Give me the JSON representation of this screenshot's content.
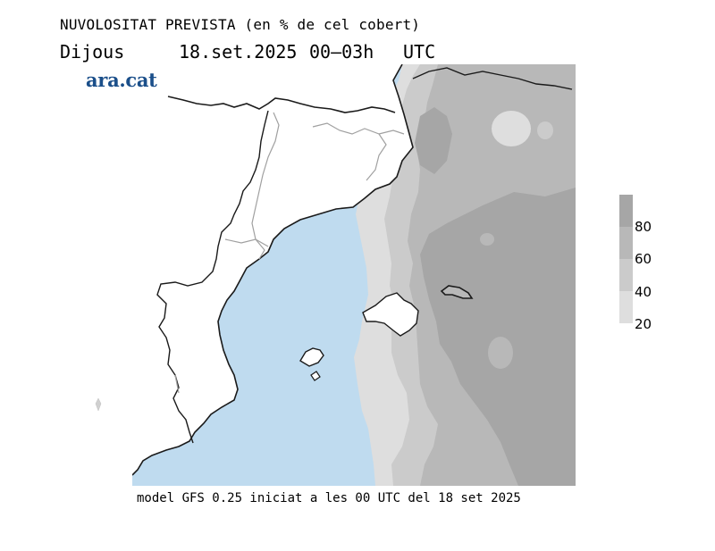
{
  "header": {
    "title": "NUVOLOSITAT PREVISTA (en % de cel cobert)",
    "day": "Dijous",
    "date": "18.set.2025",
    "hours": "00–03h",
    "timezone": "UTC"
  },
  "logo": {
    "text": "ara.cat"
  },
  "legend": {
    "labels": [
      "80",
      "60",
      "40",
      "20"
    ],
    "colors": [
      "#a6a6a6",
      "#b8b8b8",
      "#cbcbcb",
      "#dedede"
    ]
  },
  "map": {
    "sea_color": "#bfdbef",
    "land_color": "#ffffff",
    "cloud_colors": {
      "c20": "#dedede",
      "c40": "#cbcbcb",
      "c60": "#b8b8b8",
      "c80": "#a6a6a6"
    }
  },
  "footer": {
    "text": "model GFS 0.25 iniciat a les 00 UTC del 18 set 2025"
  }
}
